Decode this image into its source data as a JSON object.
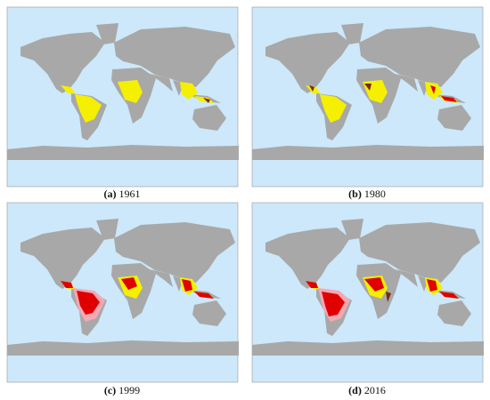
{
  "panels": [
    {
      "label": "(a)",
      "year": "1961"
    },
    {
      "label": "(b)",
      "year": "1980"
    },
    {
      "label": "(c)",
      "year": "1999"
    },
    {
      "label": "(d)",
      "year": "2016"
    }
  ]
}
